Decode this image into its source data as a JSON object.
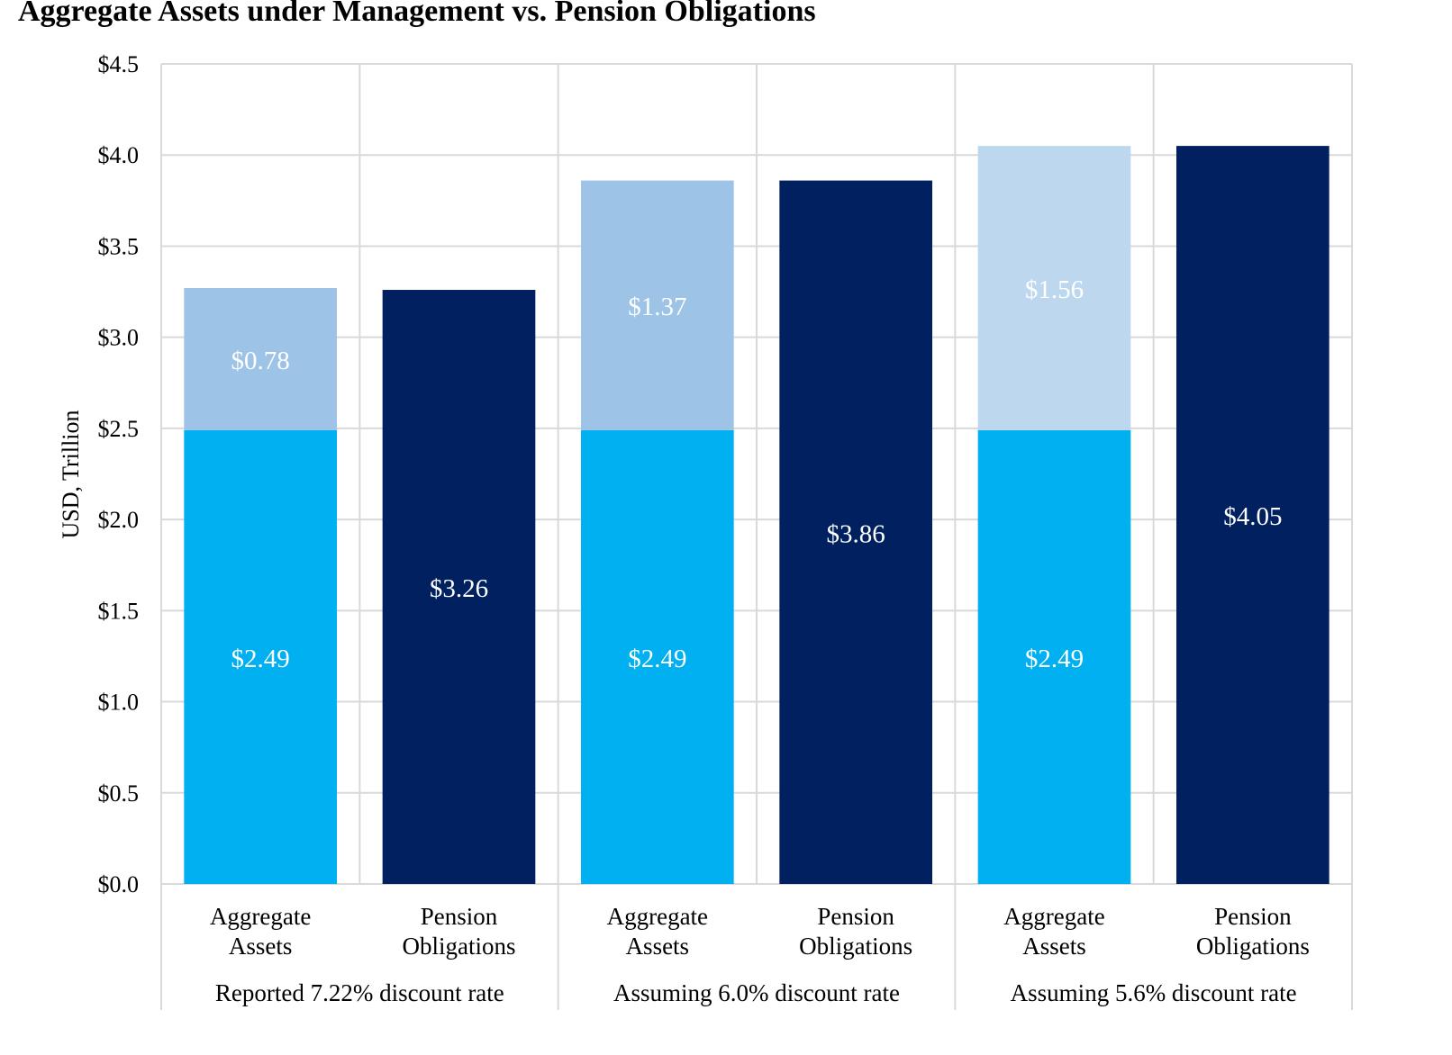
{
  "chart_data": {
    "type": "bar",
    "stacked": true,
    "title": "Aggregate Assets under Management vs. Pension Obligations",
    "ylabel": "USD, Trillion",
    "xlabel": "",
    "ylim": [
      0,
      4.5
    ],
    "ytick_step": 0.5,
    "ytick_labels": [
      "$0.0",
      "$0.5",
      "$1.0",
      "$1.5",
      "$2.0",
      "$2.5",
      "$3.0",
      "$3.5",
      "$4.0",
      "$4.5"
    ],
    "grid": true,
    "legend": "none",
    "colors": {
      "assets": "#00b0f0",
      "pension": "#002060",
      "gap_1": "#9dc3e6",
      "gap_2": "#9dc3e6",
      "gap_3": "#bdd7ee",
      "grid": "#d9d9d9"
    },
    "groups": [
      {
        "label": "Reported 7.22% discount rate",
        "bars": [
          {
            "label": [
              "Aggregate",
              "Assets"
            ],
            "segments": [
              {
                "value": 2.49,
                "label": "$2.49",
                "color_key": "assets"
              },
              {
                "value": 0.78,
                "label": "$0.78",
                "color_key": "gap_1"
              }
            ]
          },
          {
            "label": [
              "Pension",
              "Obligations"
            ],
            "segments": [
              {
                "value": 3.26,
                "label": "$3.26",
                "color_key": "pension"
              }
            ]
          }
        ]
      },
      {
        "label": "Assuming 6.0% discount rate",
        "bars": [
          {
            "label": [
              "Aggregate",
              "Assets"
            ],
            "segments": [
              {
                "value": 2.49,
                "label": "$2.49",
                "color_key": "assets"
              },
              {
                "value": 1.37,
                "label": "$1.37",
                "color_key": "gap_2"
              }
            ]
          },
          {
            "label": [
              "Pension",
              "Obligations"
            ],
            "segments": [
              {
                "value": 3.86,
                "label": "$3.86",
                "color_key": "pension"
              }
            ]
          }
        ]
      },
      {
        "label": "Assuming 5.6% discount rate",
        "bars": [
          {
            "label": [
              "Aggregate",
              "Assets"
            ],
            "segments": [
              {
                "value": 2.49,
                "label": "$2.49",
                "color_key": "assets"
              },
              {
                "value": 1.56,
                "label": "$1.56",
                "color_key": "gap_3"
              }
            ]
          },
          {
            "label": [
              "Pension",
              "Obligations"
            ],
            "segments": [
              {
                "value": 4.05,
                "label": "$4.05",
                "color_key": "pension"
              }
            ]
          }
        ]
      }
    ]
  }
}
